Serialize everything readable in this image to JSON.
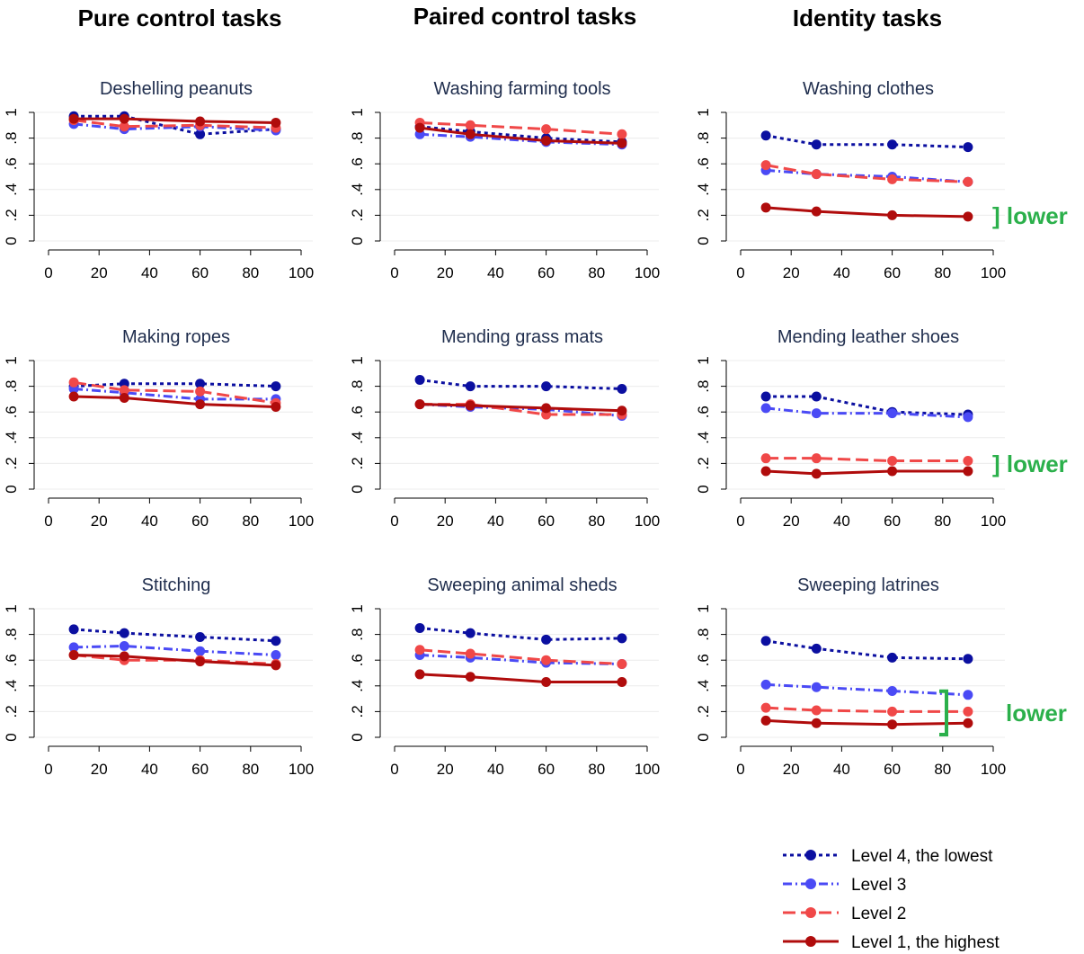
{
  "column_titles": [
    "Pure control tasks",
    "Paired control tasks",
    "Identity tasks"
  ],
  "legend": {
    "entries": [
      {
        "label": "Level 4, the lowest"
      },
      {
        "label": "Level 3"
      },
      {
        "label": "Level 2"
      },
      {
        "label": "Level 1, the highest"
      }
    ]
  },
  "series_styles": [
    {
      "color": "#0b0fa0",
      "dash": "4 4"
    },
    {
      "color": "#4a4af5",
      "dash": "10 4 2 4"
    },
    {
      "color": "#f04848",
      "dash": "14 6"
    },
    {
      "color": "#b00c0c",
      "dash": ""
    }
  ],
  "annotation_color": "#2bb04b",
  "chart_data": [
    {
      "type": "line",
      "title": "Deshelling peanuts",
      "x": [
        10,
        30,
        60,
        90
      ],
      "xlim": [
        0,
        100
      ],
      "ylim": [
        0,
        1
      ],
      "xticks": [
        "0",
        "20",
        "40",
        "60",
        "80",
        "100"
      ],
      "yticks": [
        "0",
        ".2",
        ".4",
        ".6",
        ".8",
        "1"
      ],
      "series": [
        {
          "name": "Level 4, the lowest",
          "values": [
            0.97,
            0.97,
            0.83,
            0.87
          ]
        },
        {
          "name": "Level 3",
          "values": [
            0.91,
            0.87,
            0.89,
            0.86
          ]
        },
        {
          "name": "Level 2",
          "values": [
            0.94,
            0.89,
            0.9,
            0.88
          ]
        },
        {
          "name": "Level 1, the highest",
          "values": [
            0.95,
            0.95,
            0.93,
            0.92
          ]
        }
      ],
      "annotation": ""
    },
    {
      "type": "line",
      "title": "Washing farming tools",
      "x": [
        10,
        30,
        60,
        90
      ],
      "xlim": [
        0,
        100
      ],
      "ylim": [
        0,
        1
      ],
      "xticks": [
        "0",
        "20",
        "40",
        "60",
        "80",
        "100"
      ],
      "yticks": [
        "0",
        ".2",
        ".4",
        ".6",
        ".8",
        "1"
      ],
      "series": [
        {
          "name": "Level 4, the lowest",
          "values": [
            0.89,
            0.85,
            0.8,
            0.77
          ]
        },
        {
          "name": "Level 3",
          "values": [
            0.83,
            0.81,
            0.77,
            0.75
          ]
        },
        {
          "name": "Level 2",
          "values": [
            0.92,
            0.9,
            0.87,
            0.83
          ]
        },
        {
          "name": "Level 1, the highest",
          "values": [
            0.88,
            0.83,
            0.78,
            0.76
          ]
        }
      ],
      "annotation": ""
    },
    {
      "type": "line",
      "title": "Washing clothes",
      "x": [
        10,
        30,
        60,
        90
      ],
      "xlim": [
        0,
        100
      ],
      "ylim": [
        0,
        1
      ],
      "xticks": [
        "0",
        "20",
        "40",
        "60",
        "80",
        "100"
      ],
      "yticks": [
        "0",
        ".2",
        ".4",
        ".6",
        ".8",
        "1"
      ],
      "series": [
        {
          "name": "Level 4, the lowest",
          "values": [
            0.82,
            0.75,
            0.75,
            0.73
          ]
        },
        {
          "name": "Level 3",
          "values": [
            0.55,
            0.52,
            0.5,
            0.46
          ]
        },
        {
          "name": "Level 2",
          "values": [
            0.59,
            0.52,
            0.48,
            0.46
          ]
        },
        {
          "name": "Level 1, the highest",
          "values": [
            0.26,
            0.23,
            0.2,
            0.19
          ]
        }
      ],
      "annotation": "] lower"
    },
    {
      "type": "line",
      "title": "Making ropes",
      "x": [
        10,
        30,
        60,
        90
      ],
      "xlim": [
        0,
        100
      ],
      "ylim": [
        0,
        1
      ],
      "xticks": [
        "0",
        "20",
        "40",
        "60",
        "80",
        "100"
      ],
      "yticks": [
        "0",
        ".2",
        ".4",
        ".6",
        ".8",
        "1"
      ],
      "series": [
        {
          "name": "Level 4, the lowest",
          "values": [
            0.8,
            0.82,
            0.82,
            0.8
          ]
        },
        {
          "name": "Level 3",
          "values": [
            0.78,
            0.75,
            0.7,
            0.7
          ]
        },
        {
          "name": "Level 2",
          "values": [
            0.83,
            0.77,
            0.76,
            0.67
          ]
        },
        {
          "name": "Level 1, the highest",
          "values": [
            0.72,
            0.71,
            0.66,
            0.64
          ]
        }
      ],
      "annotation": ""
    },
    {
      "type": "line",
      "title": "Mending grass mats",
      "x": [
        10,
        30,
        60,
        90
      ],
      "xlim": [
        0,
        100
      ],
      "ylim": [
        0,
        1
      ],
      "xticks": [
        "0",
        "20",
        "40",
        "60",
        "80",
        "100"
      ],
      "yticks": [
        "0",
        ".2",
        ".4",
        ".6",
        ".8",
        "1"
      ],
      "series": [
        {
          "name": "Level 4, the lowest",
          "values": [
            0.85,
            0.8,
            0.8,
            0.78
          ]
        },
        {
          "name": "Level 3",
          "values": [
            0.66,
            0.64,
            0.62,
            0.57
          ]
        },
        {
          "name": "Level 2",
          "values": [
            0.66,
            0.66,
            0.58,
            0.58
          ]
        },
        {
          "name": "Level 1, the highest",
          "values": [
            0.66,
            0.65,
            0.63,
            0.61
          ]
        }
      ],
      "annotation": ""
    },
    {
      "type": "line",
      "title": "Mending leather shoes",
      "x": [
        10,
        30,
        60,
        90
      ],
      "xlim": [
        0,
        100
      ],
      "ylim": [
        0,
        1
      ],
      "xticks": [
        "0",
        "20",
        "40",
        "60",
        "80",
        "100"
      ],
      "yticks": [
        "0",
        ".2",
        ".4",
        ".6",
        ".8",
        "1"
      ],
      "series": [
        {
          "name": "Level 4, the lowest",
          "values": [
            0.72,
            0.72,
            0.6,
            0.58
          ]
        },
        {
          "name": "Level 3",
          "values": [
            0.63,
            0.59,
            0.59,
            0.56
          ]
        },
        {
          "name": "Level 2",
          "values": [
            0.24,
            0.24,
            0.22,
            0.22
          ]
        },
        {
          "name": "Level 1, the highest",
          "values": [
            0.14,
            0.12,
            0.14,
            0.14
          ]
        }
      ],
      "annotation": "] lower"
    },
    {
      "type": "line",
      "title": "Stitching",
      "x": [
        10,
        30,
        60,
        90
      ],
      "xlim": [
        0,
        100
      ],
      "ylim": [
        0,
        1
      ],
      "xticks": [
        "0",
        "20",
        "40",
        "60",
        "80",
        "100"
      ],
      "yticks": [
        "0",
        ".2",
        ".4",
        ".6",
        ".8",
        "1"
      ],
      "series": [
        {
          "name": "Level 4, the lowest",
          "values": [
            0.84,
            0.81,
            0.78,
            0.75
          ]
        },
        {
          "name": "Level 3",
          "values": [
            0.7,
            0.71,
            0.67,
            0.64
          ]
        },
        {
          "name": "Level 2",
          "values": [
            0.64,
            0.6,
            0.6,
            0.57
          ]
        },
        {
          "name": "Level 1, the highest",
          "values": [
            0.64,
            0.63,
            0.59,
            0.56
          ]
        }
      ],
      "annotation": ""
    },
    {
      "type": "line",
      "title": "Sweeping animal sheds",
      "x": [
        10,
        30,
        60,
        90
      ],
      "xlim": [
        0,
        100
      ],
      "ylim": [
        0,
        1
      ],
      "xticks": [
        "0",
        "20",
        "40",
        "60",
        "80",
        "100"
      ],
      "yticks": [
        "0",
        ".2",
        ".4",
        ".6",
        ".8",
        "1"
      ],
      "series": [
        {
          "name": "Level 4, the lowest",
          "values": [
            0.85,
            0.81,
            0.76,
            0.77
          ]
        },
        {
          "name": "Level 3",
          "values": [
            0.64,
            0.62,
            0.58,
            0.57
          ]
        },
        {
          "name": "Level 2",
          "values": [
            0.68,
            0.65,
            0.6,
            0.57
          ]
        },
        {
          "name": "Level 1, the highest",
          "values": [
            0.49,
            0.47,
            0.43,
            0.43
          ]
        }
      ],
      "annotation": ""
    },
    {
      "type": "line",
      "title": "Sweeping latrines",
      "x": [
        10,
        30,
        60,
        90
      ],
      "xlim": [
        0,
        100
      ],
      "ylim": [
        0,
        1
      ],
      "xticks": [
        "0",
        "20",
        "40",
        "60",
        "80",
        "100"
      ],
      "yticks": [
        "0",
        ".2",
        ".4",
        ".6",
        ".8",
        "1"
      ],
      "series": [
        {
          "name": "Level 4, the lowest",
          "values": [
            0.75,
            0.69,
            0.62,
            0.61
          ]
        },
        {
          "name": "Level 3",
          "values": [
            0.41,
            0.39,
            0.36,
            0.33
          ]
        },
        {
          "name": "Level 2",
          "values": [
            0.23,
            0.21,
            0.2,
            0.2
          ]
        },
        {
          "name": "Level 1, the highest",
          "values": [
            0.13,
            0.11,
            0.1,
            0.11
          ]
        }
      ],
      "annotation": "lower"
    }
  ]
}
